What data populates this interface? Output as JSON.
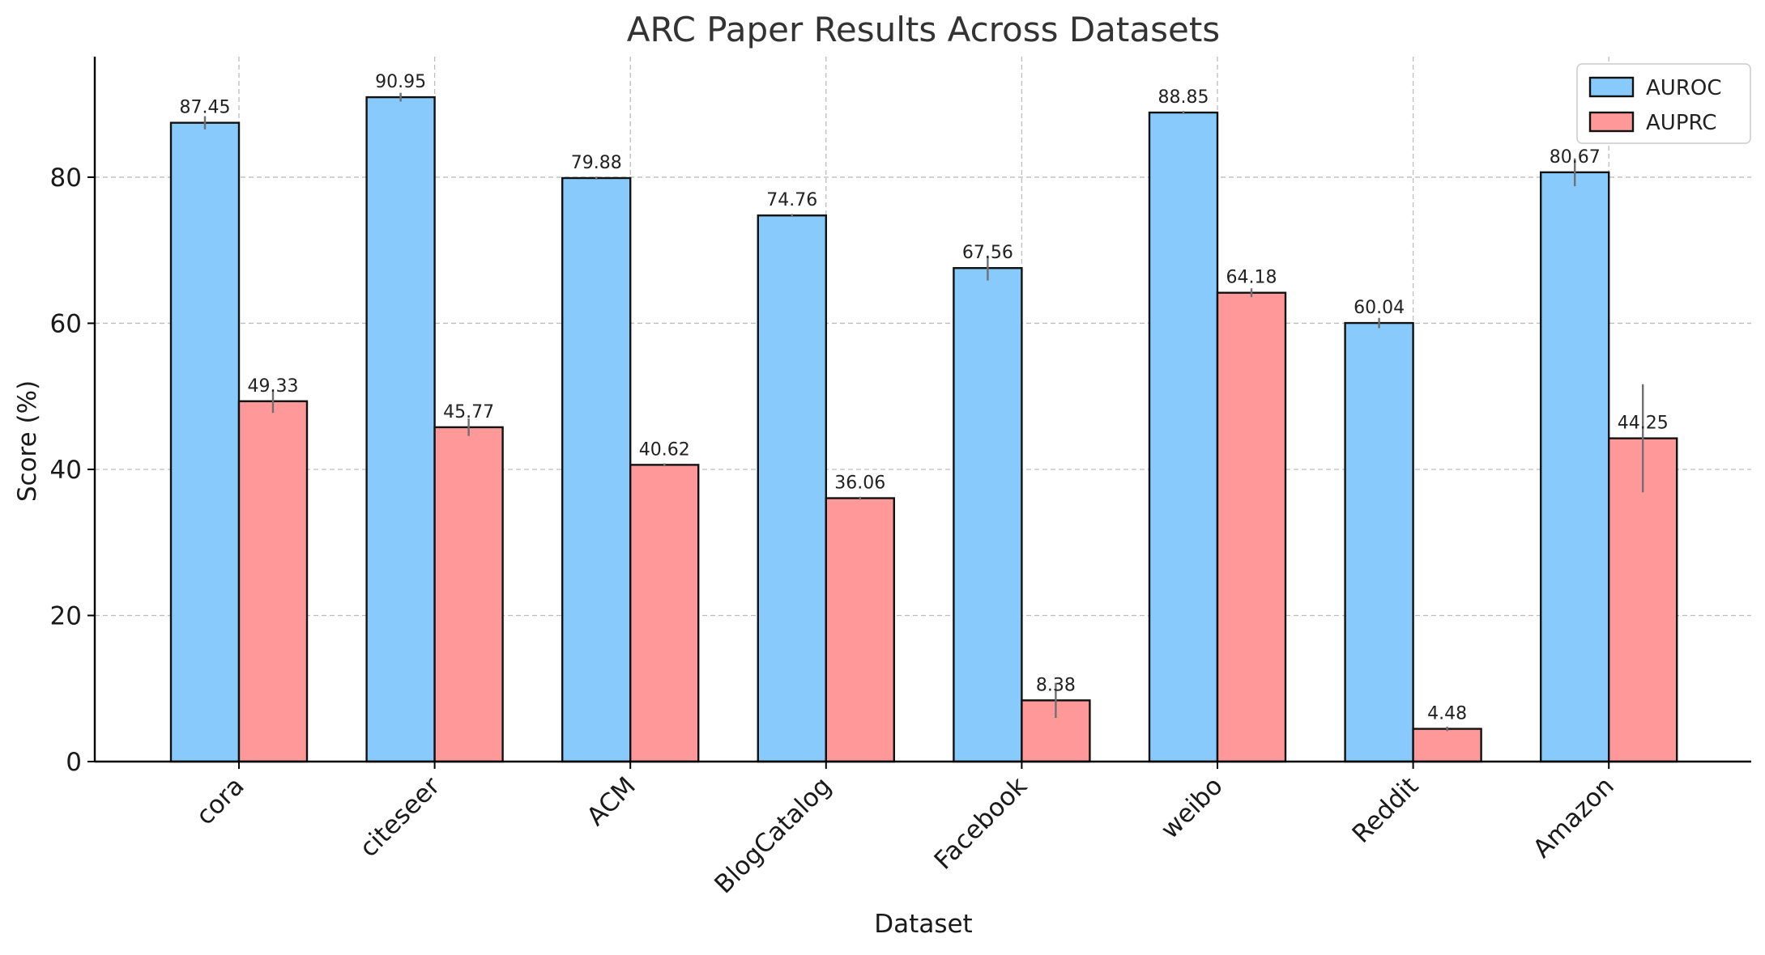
{
  "chart_data": {
    "type": "bar",
    "title": "ARC Paper Results Across Datasets",
    "xlabel": "Dataset",
    "ylabel": "Score (%)",
    "ylim": [
      0,
      96.5
    ],
    "yticks": [
      0,
      20,
      40,
      60,
      80
    ],
    "grid": true,
    "legend_position": "top-right",
    "categories": [
      "cora",
      "citeseer",
      "ACM",
      "BlogCatalog",
      "Facebook",
      "weibo",
      "Reddit",
      "Amazon"
    ],
    "series": [
      {
        "name": "AUROC",
        "color": "#87CAFB",
        "values": [
          87.45,
          90.95,
          79.88,
          74.76,
          67.56,
          88.85,
          60.04,
          80.67
        ],
        "labels": [
          "87.45",
          "90.95",
          "79.88",
          "74.76",
          "67.56",
          "88.85",
          "60.04",
          "80.67"
        ],
        "errors": [
          0.9,
          0.6,
          0.2,
          0.2,
          1.7,
          0.2,
          0.7,
          1.9
        ]
      },
      {
        "name": "AUPRC",
        "color": "#FF9999",
        "values": [
          49.33,
          45.77,
          40.62,
          36.06,
          8.38,
          64.18,
          4.48,
          44.25
        ],
        "labels": [
          "49.33",
          "45.77",
          "40.62",
          "36.06",
          "8.38",
          "64.18",
          "4.48",
          "44.25"
        ],
        "errors": [
          1.6,
          1.2,
          0.2,
          0.2,
          2.4,
          0.6,
          0.3,
          7.4
        ]
      }
    ]
  }
}
